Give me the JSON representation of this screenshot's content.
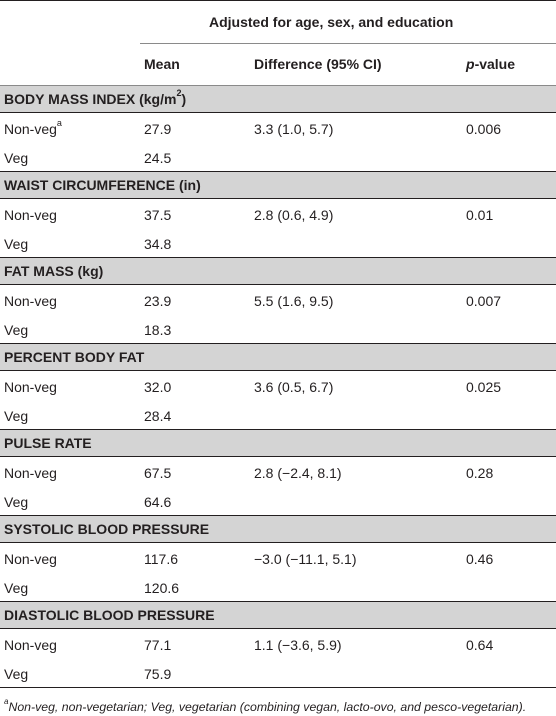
{
  "header": {
    "adjusted_label": "Adjusted for age, sex, and education",
    "col_mean": "Mean",
    "col_difference": "Difference (95% CI)",
    "col_p_italic": "p",
    "col_p_rest": "-value"
  },
  "sections": [
    {
      "title": "BODY MASS INDEX (kg/m",
      "title_sup": "2",
      "title_end": ")",
      "rows": [
        {
          "group": "Non-veg",
          "group_sup": "a",
          "mean": "27.9",
          "diff": "3.3 (1.0, 5.7)",
          "p": "0.006"
        },
        {
          "group": "Veg",
          "mean": "24.5",
          "diff": "",
          "p": ""
        }
      ]
    },
    {
      "title": "WAIST CIRCUMFERENCE (in)",
      "rows": [
        {
          "group": "Non-veg",
          "mean": "37.5",
          "diff": "2.8 (0.6, 4.9)",
          "p": "0.01"
        },
        {
          "group": "Veg",
          "mean": "34.8",
          "diff": "",
          "p": ""
        }
      ]
    },
    {
      "title": "FAT MASS (kg)",
      "rows": [
        {
          "group": "Non-veg",
          "mean": "23.9",
          "diff": "5.5 (1.6, 9.5)",
          "p": "0.007"
        },
        {
          "group": "Veg",
          "mean": "18.3",
          "diff": "",
          "p": ""
        }
      ]
    },
    {
      "title": "PERCENT BODY FAT",
      "rows": [
        {
          "group": "Non-veg",
          "mean": "32.0",
          "diff": "3.6 (0.5, 6.7)",
          "p": "0.025"
        },
        {
          "group": "Veg",
          "mean": "28.4",
          "diff": "",
          "p": ""
        }
      ]
    },
    {
      "title": "PULSE RATE",
      "rows": [
        {
          "group": "Non-veg",
          "mean": "67.5",
          "diff": "2.8 (−2.4, 8.1)",
          "p": "0.28"
        },
        {
          "group": "Veg",
          "mean": "64.6",
          "diff": "",
          "p": ""
        }
      ]
    },
    {
      "title": "SYSTOLIC BLOOD PRESSURE",
      "rows": [
        {
          "group": "Non-veg",
          "mean": "117.6",
          "diff": "−3.0 (−11.1, 5.1)",
          "p": "0.46"
        },
        {
          "group": "Veg",
          "mean": "120.6",
          "diff": "",
          "p": ""
        }
      ]
    },
    {
      "title": "DIASTOLIC BLOOD PRESSURE",
      "rows": [
        {
          "group": "Non-veg",
          "mean": "77.1",
          "diff": "1.1 (−3.6, 5.9)",
          "p": "0.64"
        },
        {
          "group": "Veg",
          "mean": "75.9",
          "diff": "",
          "p": ""
        }
      ]
    }
  ],
  "footnote": {
    "marker": "a",
    "text": "Non-veg, non-vegetarian; Veg, vegetarian (combining vegan, lacto-ovo, and pesco-vegetarian)."
  }
}
